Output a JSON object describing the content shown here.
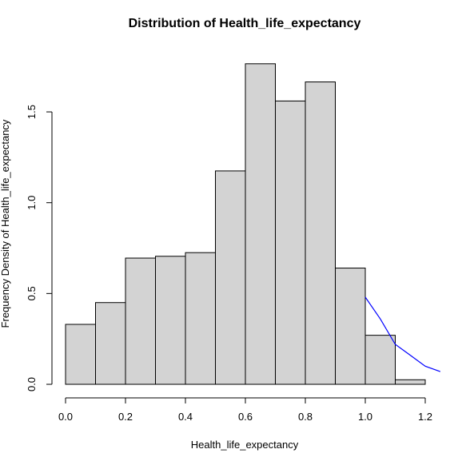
{
  "chart_data": {
    "type": "bar",
    "title": "Distribution of Health_life_expectancy",
    "xlabel": "Health_life_expectancy",
    "ylabel": "Frequency Density of Health_life_expectancy",
    "bin_width": 0.1,
    "bins": [
      {
        "start": 0.0,
        "end": 0.1,
        "density": 0.33
      },
      {
        "start": 0.1,
        "end": 0.2,
        "density": 0.45
      },
      {
        "start": 0.2,
        "end": 0.3,
        "density": 0.695
      },
      {
        "start": 0.3,
        "end": 0.4,
        "density": 0.705
      },
      {
        "start": 0.4,
        "end": 0.5,
        "density": 0.725
      },
      {
        "start": 0.5,
        "end": 0.6,
        "density": 1.175
      },
      {
        "start": 0.6,
        "end": 0.7,
        "density": 1.765
      },
      {
        "start": 0.7,
        "end": 0.8,
        "density": 1.56
      },
      {
        "start": 0.8,
        "end": 0.9,
        "density": 1.665
      },
      {
        "start": 0.9,
        "end": 1.0,
        "density": 0.64
      },
      {
        "start": 1.0,
        "end": 1.1,
        "density": 0.27
      },
      {
        "start": 1.1,
        "end": 1.2,
        "density": 0.025
      }
    ],
    "density_curve": {
      "color": "#0000ff",
      "points": [
        {
          "x": 1.0,
          "y": 0.48
        },
        {
          "x": 1.05,
          "y": 0.36
        },
        {
          "x": 1.1,
          "y": 0.22
        },
        {
          "x": 1.15,
          "y": 0.16
        },
        {
          "x": 1.2,
          "y": 0.1
        },
        {
          "x": 1.25,
          "y": 0.07
        }
      ]
    },
    "xlim": [
      0.0,
      1.2
    ],
    "ylim": [
      0.0,
      1.5
    ],
    "x_ticks": [
      {
        "value": 0.0,
        "label": "0.0"
      },
      {
        "value": 0.2,
        "label": "0.2"
      },
      {
        "value": 0.4,
        "label": "0.4"
      },
      {
        "value": 0.6,
        "label": "0.6"
      },
      {
        "value": 0.8,
        "label": "0.8"
      },
      {
        "value": 1.0,
        "label": "1.0"
      },
      {
        "value": 1.2,
        "label": "1.2"
      }
    ],
    "y_ticks": [
      {
        "value": 0.0,
        "label": "0.0"
      },
      {
        "value": 0.5,
        "label": "0.5"
      },
      {
        "value": 1.0,
        "label": "1.0"
      },
      {
        "value": 1.5,
        "label": "1.5"
      }
    ],
    "grid": false,
    "colors": {
      "bar_fill": "#d3d3d3",
      "bar_stroke": "#000000",
      "curve": "#0000ff"
    }
  }
}
